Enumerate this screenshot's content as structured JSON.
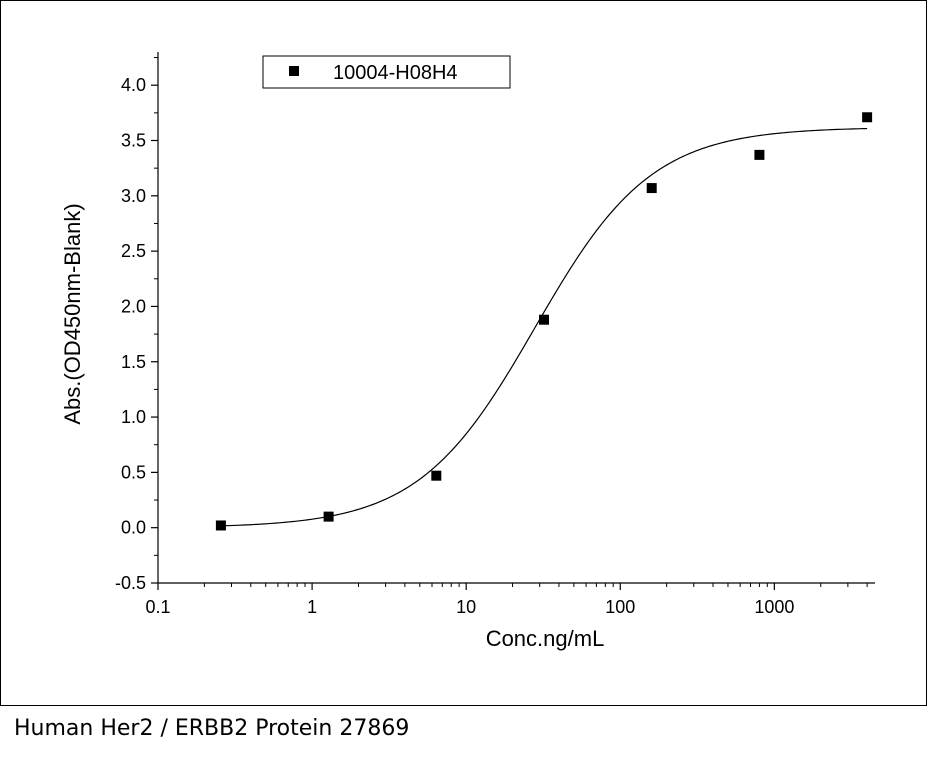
{
  "caption": "Human Her2 / ERBB2 Protein 27869",
  "chart_data": {
    "type": "scatter",
    "xlabel": "Conc.ng/mL",
    "ylabel": "Abs.(OD450nm-Blank)",
    "xscale": "log",
    "xlim": [
      0.1,
      4500
    ],
    "ylim": [
      -0.5,
      4.3
    ],
    "x_ticks": [
      0.1,
      1,
      10,
      100,
      1000
    ],
    "x_tick_labels": [
      "0.1",
      "1",
      "10",
      "100",
      "1000"
    ],
    "y_ticks": [
      -0.5,
      0.0,
      0.5,
      1.0,
      1.5,
      2.0,
      2.5,
      3.0,
      3.5,
      4.0
    ],
    "y_tick_labels": [
      "-0.5",
      "0.0",
      "0.5",
      "1.0",
      "1.5",
      "2.0",
      "2.5",
      "3.0",
      "3.5",
      "4.0"
    ],
    "grid": false,
    "legend_position": "top-left",
    "series": [
      {
        "name": "10004-H08H4",
        "color": "#000000",
        "marker": "square",
        "x": [
          0.256,
          1.28,
          6.4,
          32,
          160,
          800,
          4000
        ],
        "y": [
          0.02,
          0.1,
          0.47,
          1.88,
          3.07,
          3.37,
          3.71
        ]
      }
    ],
    "fit_curve": {
      "type": "4PL",
      "color": "#000000",
      "x_range": [
        0.256,
        4000
      ],
      "bottom": 0.0,
      "top": 3.62,
      "ec50": 28,
      "hill": 1.15
    }
  }
}
